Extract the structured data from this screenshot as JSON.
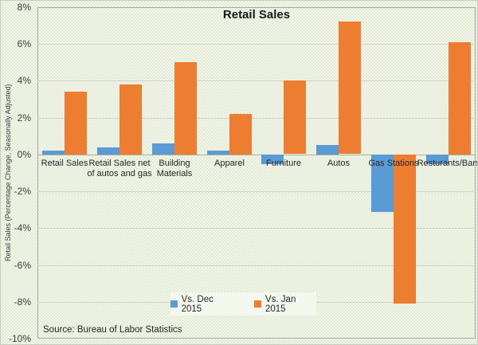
{
  "title": "Retail Sales",
  "source_note": "Source: Bureau of Labor Statistics",
  "colors": {
    "series1": "#5b9bd5",
    "series2": "#ed7d31",
    "background": "#e9efdf",
    "grid": "#ccd6c0",
    "zero_axis": "#a9b29d",
    "plot_border": "#a6a6a6",
    "text": "#3d3d3d"
  },
  "legend": {
    "items": [
      {
        "label": "Vs. Dec 2015",
        "color": "#5b9bd5"
      },
      {
        "label": "Vs. Jan 2015",
        "color": "#ed7d31"
      }
    ]
  },
  "chart_data": {
    "type": "bar",
    "title": "Retail Sales",
    "xlabel": "",
    "ylabel": "Retail Sales (Percentage Change, Seasonally Adjusted)",
    "ylim": [
      -10,
      8
    ],
    "grid": true,
    "legend_position": "bottom-center-inside",
    "ytick_values": [
      8,
      6,
      4,
      2,
      0,
      -2,
      -4,
      -6,
      -8,
      -10
    ],
    "ytick_labels": [
      "8%",
      "6%",
      "4%",
      "2%",
      "0%",
      "-2%",
      "-4%",
      "-6%",
      "-8%",
      "-10%"
    ],
    "categories": [
      "Retail Sales",
      "Retail Sales net of autos and gas",
      "Building Materials",
      "Apparel",
      "Furniture",
      "Autos",
      "Gas Stations",
      "Resturants/Bars"
    ],
    "category_label_lines": [
      [
        "Retail Sales"
      ],
      [
        "Retail Sales net",
        "of autos and gas"
      ],
      [
        "Building",
        "Materials"
      ],
      [
        "Apparel"
      ],
      [
        "Furniture"
      ],
      [
        "Autos"
      ],
      [
        "Gas Stations"
      ],
      [
        "Resturants/Bars"
      ]
    ],
    "series": [
      {
        "name": "Vs. Dec 2015",
        "color": "#5b9bd5",
        "values": [
          0.2,
          0.4,
          0.6,
          0.2,
          -0.5,
          0.5,
          -3.1,
          -0.5
        ]
      },
      {
        "name": "Vs. Jan 2015",
        "color": "#ed7d31",
        "values": [
          3.4,
          3.8,
          5.0,
          2.2,
          4.0,
          7.2,
          -8.1,
          6.1
        ]
      }
    ]
  }
}
